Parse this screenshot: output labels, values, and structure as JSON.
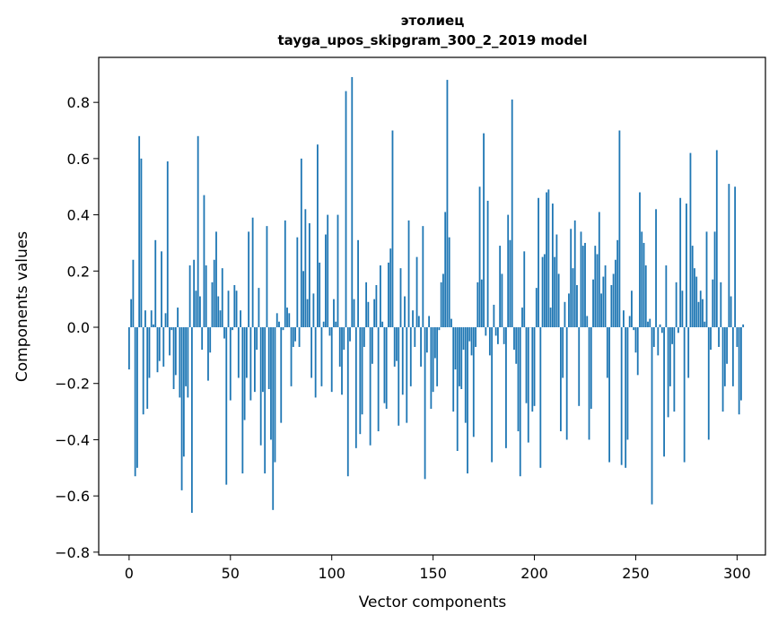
{
  "chart_data": {
    "type": "bar",
    "title": "этолиец",
    "subtitle": "tayga_upos_skipgram_300_2_2019 model",
    "xlabel": "Vector components",
    "ylabel": "Components values",
    "xlim": [
      -15,
      314
    ],
    "ylim": [
      -0.81,
      0.96
    ],
    "xticks": [
      0,
      50,
      100,
      150,
      200,
      250,
      300
    ],
    "yticks": [
      -0.8,
      -0.6,
      -0.4,
      -0.2,
      0.0,
      0.2,
      0.4,
      0.6,
      0.8
    ],
    "ytick_labels": [
      "−0.8",
      "−0.6",
      "−0.4",
      "−0.2",
      "0.0",
      "0.2",
      "0.4",
      "0.6",
      "0.8"
    ],
    "bar_color": "#1f77b4",
    "values": [
      -0.15,
      0.1,
      0.24,
      -0.53,
      -0.5,
      0.68,
      0.6,
      -0.31,
      0.06,
      -0.29,
      -0.18,
      0.06,
      0.01,
      0.31,
      -0.16,
      -0.12,
      0.27,
      -0.14,
      0.05,
      0.59,
      -0.1,
      -0.01,
      -0.22,
      -0.17,
      0.07,
      -0.25,
      -0.58,
      -0.46,
      -0.21,
      -0.25,
      0.22,
      -0.66,
      0.24,
      0.13,
      0.68,
      0.11,
      -0.08,
      0.47,
      0.22,
      -0.19,
      -0.09,
      0.16,
      0.24,
      0.34,
      0.11,
      0.06,
      0.21,
      -0.04,
      -0.56,
      0.13,
      -0.26,
      -0.01,
      0.15,
      0.13,
      -0.18,
      0.06,
      -0.52,
      -0.33,
      -0.18,
      0.34,
      -0.26,
      0.39,
      -0.23,
      -0.08,
      0.14,
      -0.42,
      -0.23,
      -0.52,
      0.36,
      -0.22,
      -0.4,
      -0.65,
      -0.48,
      0.05,
      0.02,
      -0.34,
      -0.01,
      0.38,
      0.07,
      0.05,
      -0.21,
      -0.07,
      -0.05,
      0.32,
      -0.07,
      0.6,
      0.2,
      0.42,
      0.1,
      0.37,
      -0.18,
      0.12,
      -0.25,
      0.65,
      0.23,
      -0.21,
      0.02,
      0.33,
      0.4,
      -0.03,
      -0.23,
      0.1,
      0.02,
      0.4,
      -0.14,
      -0.24,
      -0.08,
      0.84,
      -0.53,
      -0.05,
      0.89,
      0.1,
      -0.43,
      0.31,
      -0.38,
      -0.31,
      -0.07,
      0.16,
      0.09,
      -0.42,
      -0.13,
      0.1,
      0.15,
      -0.37,
      0.22,
      0.02,
      -0.27,
      -0.29,
      0.23,
      0.28,
      0.7,
      -0.14,
      -0.12,
      -0.35,
      0.21,
      -0.24,
      0.11,
      -0.34,
      0.38,
      -0.21,
      0.06,
      -0.07,
      0.25,
      0.04,
      -0.14,
      0.36,
      -0.54,
      -0.09,
      0.04,
      -0.29,
      -0.23,
      -0.11,
      -0.21,
      -0.01,
      0.16,
      0.19,
      0.41,
      0.88,
      0.32,
      0.03,
      -0.3,
      -0.15,
      -0.44,
      -0.21,
      -0.22,
      -0.08,
      -0.34,
      -0.52,
      -0.05,
      -0.1,
      -0.39,
      -0.07,
      0.16,
      0.5,
      0.17,
      0.69,
      -0.03,
      0.45,
      -0.1,
      -0.48,
      0.08,
      -0.03,
      -0.06,
      0.29,
      0.19,
      -0.06,
      -0.43,
      0.4,
      0.31,
      0.81,
      -0.08,
      -0.13,
      -0.37,
      -0.53,
      0.07,
      0.27,
      -0.27,
      -0.41,
      0.0,
      -0.3,
      -0.28,
      0.14,
      0.46,
      -0.5,
      0.25,
      0.26,
      0.48,
      0.49,
      0.07,
      0.44,
      0.25,
      0.33,
      0.19,
      -0.37,
      -0.18,
      0.09,
      -0.4,
      0.12,
      0.35,
      0.21,
      0.38,
      0.15,
      -0.28,
      0.34,
      0.29,
      0.3,
      0.04,
      -0.4,
      -0.29,
      0.17,
      0.29,
      0.26,
      0.41,
      0.12,
      0.18,
      0.22,
      -0.18,
      -0.48,
      0.15,
      0.19,
      0.24,
      0.31,
      0.7,
      -0.49,
      0.06,
      -0.5,
      -0.4,
      0.04,
      0.13,
      -0.01,
      -0.09,
      -0.17,
      0.48,
      0.34,
      0.3,
      0.22,
      0.02,
      0.03,
      -0.63,
      -0.07,
      0.42,
      -0.1,
      0.01,
      -0.02,
      -0.46,
      0.22,
      -0.32,
      -0.21,
      -0.06,
      -0.3,
      0.16,
      -0.02,
      0.46,
      0.13,
      -0.48,
      0.44,
      -0.18,
      0.62,
      0.29,
      0.21,
      0.18,
      0.09,
      0.13,
      0.1,
      0.02,
      0.34,
      -0.4,
      -0.08,
      0.17,
      0.34,
      0.63,
      -0.07,
      0.16,
      -0.3,
      -0.21,
      -0.13,
      0.51,
      0.11,
      -0.21,
      0.5,
      -0.07,
      -0.31,
      -0.26,
      0.01
    ]
  }
}
